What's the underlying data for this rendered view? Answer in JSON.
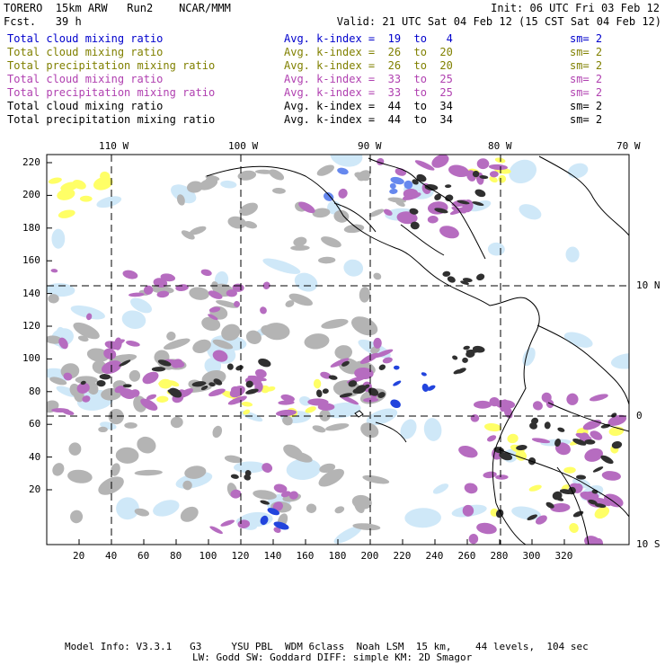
{
  "header": {
    "title_left": "TORERO  15km ARW   Run2    NCAR/MMM",
    "fcst_label": "Fcst.   39 h",
    "init": "Init: 06 UTC Fri 03 Feb 12",
    "valid": "Valid: 21 UTC Sat 04 Feb 12 (15 CST Sat 04 Feb 12)"
  },
  "fields": [
    {
      "name": "Total cloud mixing ratio",
      "kindex": "Avg. k-index =  19  to   4",
      "sm": "sm= 2",
      "color": "#0000cc"
    },
    {
      "name": "Total cloud mixing ratio",
      "kindex": "Avg. k-index =  26  to  20",
      "sm": "sm= 2",
      "color": "#808000"
    },
    {
      "name": "Total precipitation mixing ratio",
      "kindex": "Avg. k-index =  26  to  20",
      "sm": "sm= 2",
      "color": "#808000"
    },
    {
      "name": "Total cloud mixing ratio",
      "kindex": "Avg. k-index =  33  to  25",
      "sm": "sm= 2",
      "color": "#b040b0"
    },
    {
      "name": "Total precipitation mixing ratio",
      "kindex": "Avg. k-index =  33  to  25",
      "sm": "sm= 2",
      "color": "#b040b0"
    },
    {
      "name": "Total cloud mixing ratio",
      "kindex": "Avg. k-index =  44  to  34",
      "sm": "sm= 2",
      "color": "#000000"
    },
    {
      "name": "Total precipitation mixing ratio",
      "kindex": "Avg. k-index =  44  to  34",
      "sm": "sm= 2",
      "color": "#000000"
    }
  ],
  "map": {
    "lon_labels": [
      "110 W",
      "100 W",
      "90 W",
      "80 W",
      "70 W"
    ],
    "lat_labels": [
      "10 N",
      "0",
      "10 S"
    ],
    "x_ticks": [
      "20",
      "40",
      "60",
      "80",
      "100",
      "120",
      "140",
      "160",
      "180",
      "200",
      "220",
      "240",
      "260",
      "280",
      "300",
      "320"
    ],
    "y_ticks": [
      "220",
      "200",
      "180",
      "160",
      "140",
      "120",
      "100",
      "80",
      "60",
      "40",
      "20"
    ]
  },
  "footer": {
    "line1": "Model Info: V3.3.1   G3     YSU PBL  WDM 6class  Noah LSM  15 km,    44 levels,  104 sec",
    "line2": "LW: Godd SW: Goddard DIFF: simple KM: 2D Smagor"
  }
}
